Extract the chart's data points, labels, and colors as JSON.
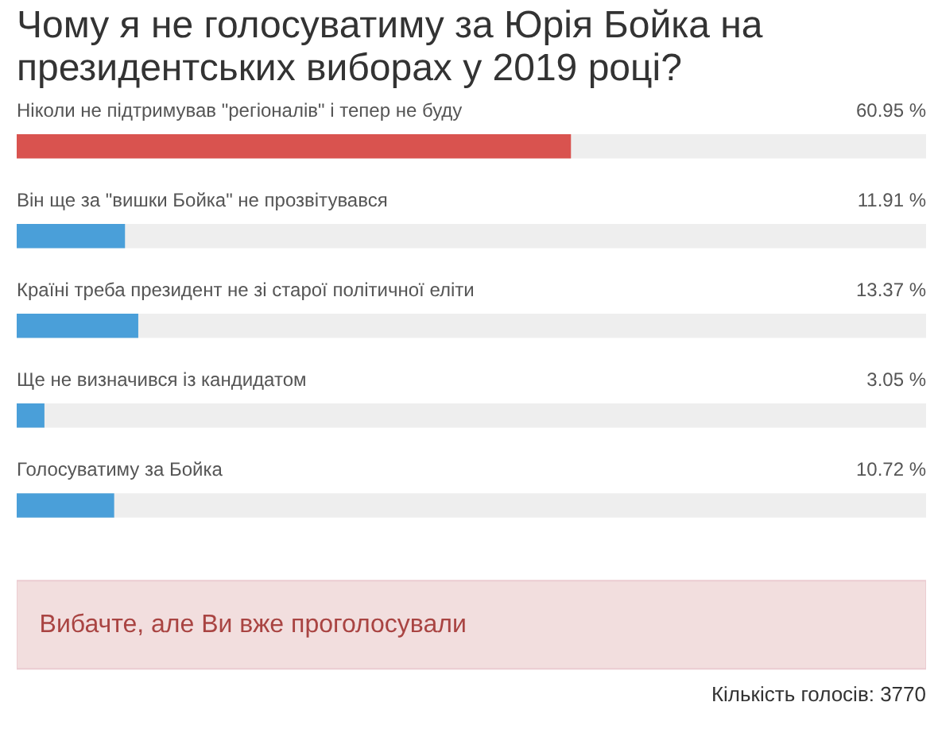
{
  "chart_data": {
    "type": "bar",
    "orientation": "horizontal",
    "title": "Чому я не голосуватиму за Юрія Бойка на президентських виборах у 2019 році?",
    "categories": [
      "Ніколи не підтримував \"регіоналів\" і тепер не буду",
      "Він ще за \"вишки Бойка\" не прозвітувався",
      "Країні треба президент не зі старої політичної еліти",
      "Ще не визначився із кандидатом",
      "Голосуватиму за Бойка"
    ],
    "values": [
      60.95,
      11.91,
      13.37,
      3.05,
      10.72
    ],
    "value_labels": [
      "60.95 %",
      "11.91 %",
      "13.37 %",
      "3.05 %",
      "10.72 %"
    ],
    "colors": [
      "#d9534f",
      "#4a9fd9",
      "#4a9fd9",
      "#4a9fd9",
      "#4a9fd9"
    ],
    "xlim": [
      0,
      100
    ],
    "tick_labels": false,
    "grid": false,
    "annotations": [
      "Вибачте, але Ви вже проголосували",
      "Кількість голосів: 3770"
    ]
  }
}
